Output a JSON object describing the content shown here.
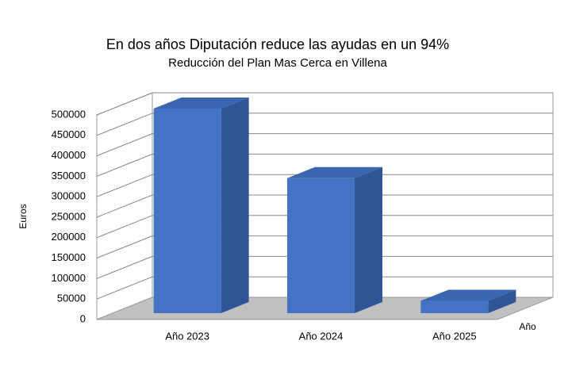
{
  "chart_data": {
    "type": "bar3d",
    "title": "En dos años Diputación reduce las ayudas en un 94%",
    "subtitle": "Reducción del Plan Mas Cerca en Villena",
    "y_label": "Euros",
    "x_label": "Año",
    "categories": [
      "Año 2023",
      "Año 2024",
      "Año 2025"
    ],
    "values": [
      500000,
      330000,
      30000
    ],
    "color": "#4472c4",
    "ylim": [
      0,
      500000
    ],
    "yticks": [
      0,
      50000,
      100000,
      150000,
      200000,
      250000,
      300000,
      350000,
      400000,
      450000,
      500000
    ],
    "grid": true
  }
}
